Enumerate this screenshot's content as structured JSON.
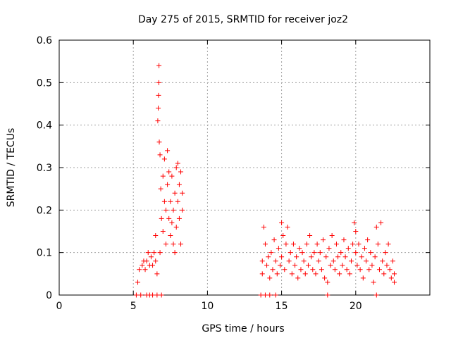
{
  "chart_data": {
    "type": "scatter",
    "title": "Day 275 of 2015, SRMTID for receiver joz2",
    "xlabel": "GPS time / hours",
    "ylabel": "SRMTID / TECUs",
    "xlim": [
      0,
      25
    ],
    "ylim": [
      0,
      0.6
    ],
    "xticks": [
      0,
      5,
      10,
      15,
      20
    ],
    "yticks": [
      0,
      0.1,
      0.2,
      0.3,
      0.4,
      0.5,
      0.6
    ],
    "xtick_labels": [
      "0",
      "5",
      "10",
      "15",
      "20"
    ],
    "ytick_labels": [
      "0",
      "0.1",
      "0.2",
      "0.3",
      "0.4",
      "0.5",
      "0.6"
    ],
    "grid": true,
    "marker": "+",
    "series": [
      {
        "name": "SRMTID",
        "color": "#ff0000",
        "points": [
          [
            5.2,
            0.0
          ],
          [
            5.3,
            0.03
          ],
          [
            5.4,
            0.06
          ],
          [
            5.5,
            0.0
          ],
          [
            5.6,
            0.07
          ],
          [
            5.7,
            0.08
          ],
          [
            5.8,
            0.06
          ],
          [
            5.9,
            0.0
          ],
          [
            5.9,
            0.08
          ],
          [
            6.0,
            0.1
          ],
          [
            6.1,
            0.07
          ],
          [
            6.1,
            0.0
          ],
          [
            6.2,
            0.09
          ],
          [
            6.3,
            0.0
          ],
          [
            6.3,
            0.07
          ],
          [
            6.4,
            0.1
          ],
          [
            6.5,
            0.08
          ],
          [
            6.5,
            0.14
          ],
          [
            6.6,
            0.05
          ],
          [
            6.6,
            0.0
          ],
          [
            6.65,
            0.41
          ],
          [
            6.68,
            0.44
          ],
          [
            6.7,
            0.47
          ],
          [
            6.72,
            0.5
          ],
          [
            6.73,
            0.54
          ],
          [
            6.75,
            0.36
          ],
          [
            6.8,
            0.33
          ],
          [
            6.8,
            0.1
          ],
          [
            6.85,
            0.25
          ],
          [
            6.9,
            0.18
          ],
          [
            6.9,
            0.0
          ],
          [
            7.0,
            0.28
          ],
          [
            7.0,
            0.15
          ],
          [
            7.1,
            0.22
          ],
          [
            7.1,
            0.32
          ],
          [
            7.2,
            0.2
          ],
          [
            7.2,
            0.12
          ],
          [
            7.3,
            0.34
          ],
          [
            7.3,
            0.26
          ],
          [
            7.4,
            0.18
          ],
          [
            7.4,
            0.29
          ],
          [
            7.5,
            0.14
          ],
          [
            7.5,
            0.22
          ],
          [
            7.6,
            0.17
          ],
          [
            7.6,
            0.28
          ],
          [
            7.7,
            0.12
          ],
          [
            7.7,
            0.2
          ],
          [
            7.8,
            0.24
          ],
          [
            7.8,
            0.1
          ],
          [
            7.9,
            0.3
          ],
          [
            7.9,
            0.16
          ],
          [
            8.0,
            0.31
          ],
          [
            8.0,
            0.22
          ],
          [
            8.1,
            0.18
          ],
          [
            8.1,
            0.26
          ],
          [
            8.2,
            0.29
          ],
          [
            8.2,
            0.12
          ],
          [
            8.3,
            0.24
          ],
          [
            8.3,
            0.2
          ],
          [
            13.6,
            0.0
          ],
          [
            13.7,
            0.08
          ],
          [
            13.7,
            0.05
          ],
          [
            13.8,
            0.16
          ],
          [
            13.9,
            0.12
          ],
          [
            13.9,
            0.0
          ],
          [
            14.0,
            0.07
          ],
          [
            14.1,
            0.09
          ],
          [
            14.2,
            0.04
          ],
          [
            14.2,
            0.0
          ],
          [
            14.3,
            0.1
          ],
          [
            14.4,
            0.06
          ],
          [
            14.5,
            0.13
          ],
          [
            14.6,
            0.08
          ],
          [
            14.6,
            0.0
          ],
          [
            14.7,
            0.05
          ],
          [
            14.8,
            0.11
          ],
          [
            14.9,
            0.07
          ],
          [
            15.0,
            0.17
          ],
          [
            15.0,
            0.09
          ],
          [
            15.1,
            0.14
          ],
          [
            15.2,
            0.06
          ],
          [
            15.3,
            0.12
          ],
          [
            15.4,
            0.16
          ],
          [
            15.5,
            0.08
          ],
          [
            15.6,
            0.1
          ],
          [
            15.7,
            0.05
          ],
          [
            15.8,
            0.12
          ],
          [
            15.9,
            0.07
          ],
          [
            16.0,
            0.09
          ],
          [
            16.1,
            0.04
          ],
          [
            16.2,
            0.11
          ],
          [
            16.3,
            0.06
          ],
          [
            16.4,
            0.1
          ],
          [
            16.5,
            0.08
          ],
          [
            16.6,
            0.05
          ],
          [
            16.7,
            0.12
          ],
          [
            16.8,
            0.07
          ],
          [
            16.9,
            0.14
          ],
          [
            17.0,
            0.09
          ],
          [
            17.1,
            0.06
          ],
          [
            17.2,
            0.1
          ],
          [
            17.3,
            0.05
          ],
          [
            17.4,
            0.12
          ],
          [
            17.5,
            0.08
          ],
          [
            17.6,
            0.1
          ],
          [
            17.7,
            0.06
          ],
          [
            17.8,
            0.13
          ],
          [
            17.9,
            0.04
          ],
          [
            18.0,
            0.09
          ],
          [
            18.1,
            0.03
          ],
          [
            18.1,
            0.0
          ],
          [
            18.2,
            0.11
          ],
          [
            18.3,
            0.07
          ],
          [
            18.4,
            0.14
          ],
          [
            18.5,
            0.08
          ],
          [
            18.6,
            0.06
          ],
          [
            18.7,
            0.12
          ],
          [
            18.8,
            0.09
          ],
          [
            18.9,
            0.05
          ],
          [
            19.0,
            0.1
          ],
          [
            19.1,
            0.07
          ],
          [
            19.2,
            0.13
          ],
          [
            19.3,
            0.09
          ],
          [
            19.4,
            0.06
          ],
          [
            19.5,
            0.11
          ],
          [
            19.6,
            0.05
          ],
          [
            19.7,
            0.08
          ],
          [
            19.8,
            0.12
          ],
          [
            19.9,
            0.17
          ],
          [
            20.0,
            0.15
          ],
          [
            20.0,
            0.1
          ],
          [
            20.1,
            0.07
          ],
          [
            20.2,
            0.12
          ],
          [
            20.3,
            0.06
          ],
          [
            20.4,
            0.09
          ],
          [
            20.5,
            0.04
          ],
          [
            20.6,
            0.11
          ],
          [
            20.7,
            0.08
          ],
          [
            20.8,
            0.13
          ],
          [
            20.9,
            0.06
          ],
          [
            21.0,
            0.1
          ],
          [
            21.1,
            0.07
          ],
          [
            21.2,
            0.03
          ],
          [
            21.3,
            0.09
          ],
          [
            21.4,
            0.16
          ],
          [
            21.4,
            0.0
          ],
          [
            21.5,
            0.12
          ],
          [
            21.6,
            0.06
          ],
          [
            21.7,
            0.17
          ],
          [
            21.8,
            0.08
          ],
          [
            21.9,
            0.05
          ],
          [
            22.0,
            0.1
          ],
          [
            22.1,
            0.07
          ],
          [
            22.2,
            0.12
          ],
          [
            22.3,
            0.06
          ],
          [
            22.4,
            0.04
          ],
          [
            22.5,
            0.08
          ],
          [
            22.6,
            0.05
          ],
          [
            22.6,
            0.03
          ]
        ]
      }
    ]
  }
}
